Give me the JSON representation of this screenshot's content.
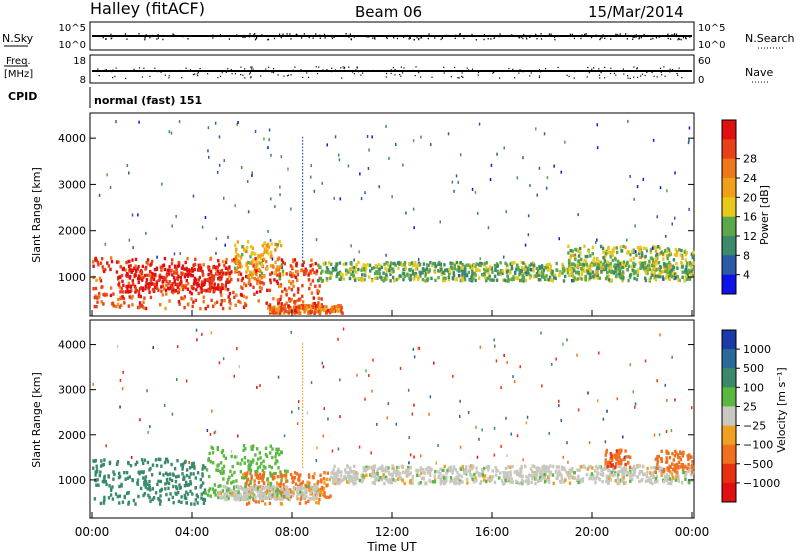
{
  "header": {
    "station": "Halley (fitACF)",
    "beam": "Beam 06",
    "date": "15/Mar/2014"
  },
  "top_panels": {
    "nsky_label": "N.Sky",
    "nsky_tick_high": "10^5",
    "nsky_tick_low": "10^0",
    "nsearch_label": "N.Search",
    "nsearch_tick_high": "10^5",
    "nsearch_tick_low": "10^0",
    "freq_label": "Freq.",
    "freq_unit": "[MHz]",
    "freq_tick_high": "18",
    "freq_tick_low": "8",
    "nave_label": "Nave",
    "nave_tick_high": "60",
    "nave_tick_low": "0",
    "cpid_label": "CPID",
    "cpid_value": "normal (fast) 151"
  },
  "chart_data": [
    {
      "type": "heatmap",
      "name": "power",
      "ylabel": "Slant Range [km]",
      "ylim": [
        200,
        4500
      ],
      "yticks": [
        "1000",
        "2000",
        "3000",
        "4000"
      ],
      "colorbar_label": "Power [dB]",
      "colorbar_ticks": [
        "4",
        "8",
        "12",
        "16",
        "20",
        "24",
        "28"
      ],
      "colorbar_colors": [
        "#1010e8",
        "#2a5aa8",
        "#3d8a6a",
        "#5aa848",
        "#e8c81a",
        "#f0a018",
        "#f07818",
        "#e84018",
        "#e01010"
      ],
      "blobs": [
        {
          "t0": 0.0,
          "t1": 9.2,
          "r0": 350,
          "r1": 1450,
          "level": 26
        },
        {
          "t0": 1.0,
          "t1": 5.5,
          "r0": 700,
          "r1": 1300,
          "level": 30
        },
        {
          "t0": 5.6,
          "t1": 7.6,
          "r0": 1000,
          "r1": 1800,
          "level": 18
        },
        {
          "t0": 7.0,
          "t1": 10.0,
          "r0": 250,
          "r1": 420,
          "level": 24
        },
        {
          "t0": 9.0,
          "t1": 24.0,
          "r0": 950,
          "r1": 1350,
          "level": 12
        },
        {
          "t0": 19.0,
          "t1": 24.0,
          "r0": 1100,
          "r1": 1700,
          "level": 14
        }
      ]
    },
    {
      "type": "heatmap",
      "name": "velocity",
      "ylabel": "Slant Range [km]",
      "ylim": [
        200,
        4500
      ],
      "yticks": [
        "1000",
        "2000",
        "3000",
        "4000"
      ],
      "colorbar_label": "Velocity [m s⁻¹]",
      "colorbar_ticks": [
        "1000",
        "500",
        "100",
        "25",
        "−25",
        "−100",
        "−500",
        "−1000"
      ],
      "colorbar_colors": [
        "#1a3aa8",
        "#2a6a9a",
        "#3a8a6a",
        "#5ab840",
        "#c8c8c0",
        "#f0a020",
        "#f07020",
        "#e83010",
        "#e01010"
      ],
      "blobs": [
        {
          "t0": 0.0,
          "t1": 4.5,
          "r0": 500,
          "r1": 1500,
          "level": 300
        },
        {
          "t0": 4.5,
          "t1": 7.8,
          "r0": 600,
          "r1": 1800,
          "level": 60
        },
        {
          "t0": 6.0,
          "t1": 9.5,
          "r0": 500,
          "r1": 1200,
          "level": -150
        },
        {
          "t0": 5.0,
          "t1": 9.0,
          "r0": 600,
          "r1": 900,
          "level": 0
        },
        {
          "t0": 9.5,
          "t1": 24.0,
          "r0": 950,
          "r1": 1350,
          "level": 0
        },
        {
          "t0": 20.5,
          "t1": 21.5,
          "r0": 1300,
          "r1": 1700,
          "level": -400
        },
        {
          "t0": 22.5,
          "t1": 24.0,
          "r0": 1200,
          "r1": 1700,
          "level": -300
        }
      ]
    }
  ],
  "xaxis": {
    "label": "Time UT",
    "ticks": [
      "00:00",
      "04:00",
      "08:00",
      "12:00",
      "16:00",
      "20:00",
      "00:00"
    ],
    "xlim": [
      0,
      24
    ]
  }
}
